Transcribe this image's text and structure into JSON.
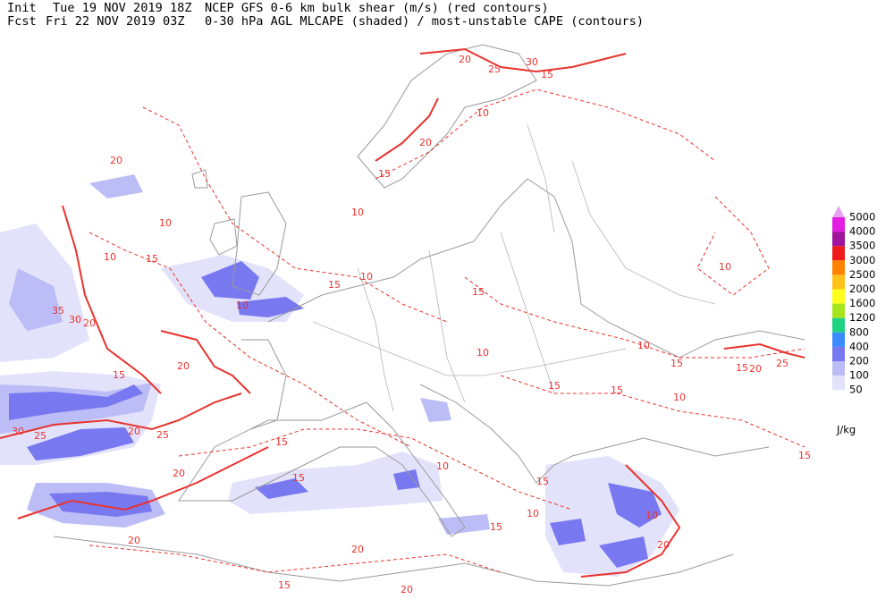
{
  "header": {
    "init_label": "Init",
    "init_time": "Tue 19 NOV 2019 18Z",
    "fcst_label": "Fcst",
    "fcst_time": "Fri 22 NOV 2019 03Z",
    "line1_title": "NCEP GFS 0-6 km bulk shear (m/s) (red contours)",
    "line2_title": "0-30 hPa AGL MLCAPE (shaded) / most-unstable CAPE (contours)"
  },
  "legend": {
    "unit": "J/kg",
    "levels": [
      {
        "label": "5000",
        "color": "#e8a2f2"
      },
      {
        "label": "4000",
        "color": "#e21ee2"
      },
      {
        "label": "3500",
        "color": "#a0149e"
      },
      {
        "label": "3000",
        "color": "#f01a1a"
      },
      {
        "label": "2500",
        "color": "#ff8200"
      },
      {
        "label": "2000",
        "color": "#ffc21a"
      },
      {
        "label": "1600",
        "color": "#fdfd1e"
      },
      {
        "label": "1200",
        "color": "#a6e61e"
      },
      {
        "label": "800",
        "color": "#1ed282"
      },
      {
        "label": "400",
        "color": "#3c8cff"
      },
      {
        "label": "200",
        "color": "#7878f0"
      },
      {
        "label": "100",
        "color": "#bcbcf6"
      },
      {
        "label": "50",
        "color": "#e2e2fa"
      }
    ]
  },
  "contour_labels": [
    "20",
    "25",
    "30",
    "15",
    "10",
    "20",
    "15",
    "10",
    "10",
    "15",
    "10",
    "35",
    "30",
    "20",
    "15",
    "20",
    "10",
    "15",
    "10",
    "15",
    "10",
    "15",
    "15",
    "10",
    "15",
    "15",
    "20",
    "25",
    "10",
    "25",
    "30",
    "25",
    "20",
    "15",
    "15",
    "20",
    "10",
    "15",
    "10",
    "20",
    "10",
    "20",
    "15",
    "20",
    "20",
    "15",
    "15",
    "10",
    "20"
  ]
}
